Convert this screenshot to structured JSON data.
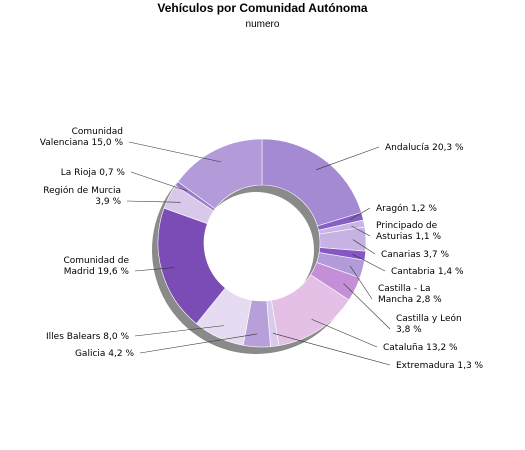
{
  "chart_data": {
    "type": "pie",
    "title": "Vehículos por Comunidad Autónoma",
    "subtitle": "numero",
    "slices": [
      {
        "name": "Andalucía",
        "label_lines": [
          "Andalucía 20,3 %"
        ],
        "value": 20.3,
        "color": "#a48ad2"
      },
      {
        "name": "Aragón",
        "label_lines": [
          "Aragón 1,2 %"
        ],
        "value": 1.2,
        "color": "#8560c4"
      },
      {
        "name": "Principado de Asturias",
        "label_lines": [
          "Principado de",
          "Asturias 1,1 %"
        ],
        "value": 1.1,
        "color": "#c9b6e6"
      },
      {
        "name": "Canarias",
        "label_lines": [
          "Canarias 3,7 %"
        ],
        "value": 3.7,
        "color": "#c7b2e4"
      },
      {
        "name": "Cantabria",
        "label_lines": [
          "Cantabria 1,4 %"
        ],
        "value": 1.4,
        "color": "#8656c4"
      },
      {
        "name": "Castilla - La Mancha",
        "label_lines": [
          "Castilla - La",
          "Mancha 2,8 %"
        ],
        "value": 2.8,
        "color": "#b29bd8"
      },
      {
        "name": "Castilla y León",
        "label_lines": [
          "Castilla y León",
          "3,8 %"
        ],
        "value": 3.8,
        "color": "#c48fd6"
      },
      {
        "name": "Cataluña",
        "label_lines": [
          "Cataluña 13,2 %"
        ],
        "value": 13.2,
        "color": "#e4c0e7"
      },
      {
        "name": "Extremadura",
        "label_lines": [
          "Extremadura 1,3 %"
        ],
        "value": 1.3,
        "color": "#d9cceb"
      },
      {
        "name": "Galicia",
        "label_lines": [
          "Galicia 4,2 %"
        ],
        "value": 4.2,
        "color": "#b7a0da"
      },
      {
        "name": "Illes Balears",
        "label_lines": [
          "Illes Balears 8,0 %"
        ],
        "value": 8.0,
        "color": "#e6dcf1"
      },
      {
        "name": "Comunidad de Madrid",
        "label_lines": [
          "Comunidad de",
          "Madrid 19,6 %"
        ],
        "value": 19.6,
        "color": "#7c4cb6"
      },
      {
        "name": "Región de Murcia",
        "label_lines": [
          "Región de Murcia",
          "3,9 %"
        ],
        "value": 3.9,
        "color": "#d8c8ea"
      },
      {
        "name": "La Rioja",
        "label_lines": [
          "La Rioja 0,7 %"
        ],
        "value": 0.7,
        "color": "#9a78cc"
      },
      {
        "name": "Comunidad Valenciana",
        "label_lines": [
          "Comunidad",
          "Valenciana 15,0 %"
        ],
        "value": 15.0,
        "color": "#b39ad9"
      }
    ]
  }
}
